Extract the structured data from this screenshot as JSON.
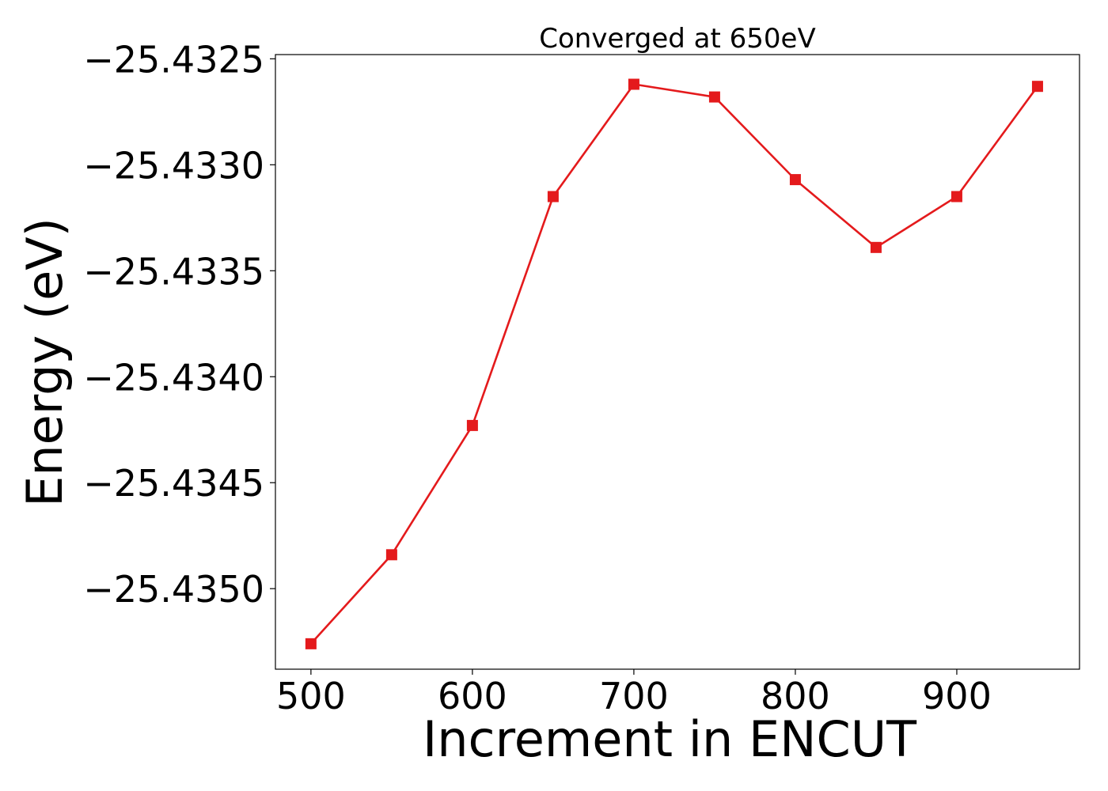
{
  "chart_data": {
    "type": "line",
    "title": "Converged at 650eV",
    "xlabel": "Increment in ENCUT",
    "ylabel": "Energy (eV)",
    "x": [
      500,
      550,
      600,
      650,
      700,
      750,
      800,
      850,
      900,
      950
    ],
    "series": [
      {
        "values": [
          -25.43526,
          -25.43484,
          -25.43423,
          -25.43315,
          -25.43262,
          -25.43268,
          -25.43307,
          -25.43339,
          -25.43315,
          -25.43263
        ],
        "color": "#e41a1c",
        "marker": "square"
      }
    ],
    "xlim": [
      478,
      976
    ],
    "ylim": [
      -25.43538,
      -25.43248
    ],
    "xticks": [
      500,
      600,
      700,
      800,
      900
    ],
    "xtick_labels": [
      "500",
      "600",
      "700",
      "800",
      "900"
    ],
    "yticks": [
      -25.4325,
      -25.433,
      -25.4335,
      -25.434,
      -25.4345,
      -25.435
    ],
    "ytick_labels": [
      "−25.4325",
      "−25.4330",
      "−25.4335",
      "−25.4340",
      "−25.4345",
      "−25.4350"
    ],
    "grid": false,
    "legend": "none"
  }
}
